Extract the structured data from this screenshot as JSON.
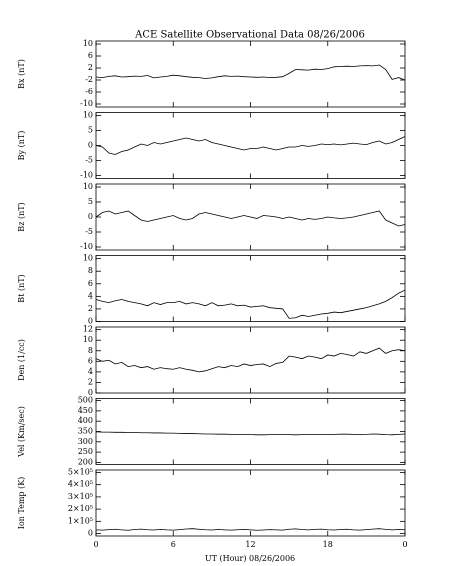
{
  "chart_data": {
    "type": "line",
    "title": "ACE Satellite Observational Data   08/26/2006",
    "xlabel": "UT (Hour)   08/26/2006",
    "xlim": [
      0,
      24
    ],
    "xticks": [
      0,
      6,
      12,
      18,
      {
        "value": 24,
        "label": "0"
      }
    ],
    "x": [
      0,
      0.5,
      1,
      1.5,
      2,
      2.5,
      3,
      3.5,
      4,
      4.5,
      5,
      5.5,
      6,
      6.5,
      7,
      7.5,
      8,
      8.5,
      9,
      9.5,
      10,
      10.5,
      11,
      11.5,
      12,
      12.5,
      13,
      13.5,
      14,
      14.5,
      15,
      15.5,
      16,
      16.5,
      17,
      17.5,
      18,
      18.5,
      19,
      19.5,
      20,
      20.5,
      21,
      21.5,
      22,
      22.5,
      23,
      23.5,
      24
    ],
    "color": "#000000",
    "panels": [
      {
        "ylabel": "Bx (nT)",
        "ylim": [
          -11,
          11
        ],
        "yticks": [
          -10,
          -6,
          -2,
          2,
          6,
          10
        ],
        "values": [
          -1,
          -1.2,
          -0.8,
          -0.6,
          -1,
          -0.9,
          -0.7,
          -0.8,
          -0.5,
          -1.3,
          -1,
          -0.8,
          -0.4,
          -0.6,
          -0.9,
          -1.1,
          -1.2,
          -1.5,
          -1.3,
          -0.9,
          -0.6,
          -0.8,
          -0.7,
          -0.9,
          -1,
          -1.1,
          -1,
          -1.2,
          -1.1,
          -0.9,
          0.2,
          1.5,
          1.4,
          1.3,
          1.6,
          1.5,
          1.8,
          2.4,
          2.5,
          2.6,
          2.5,
          2.7,
          2.8,
          2.7,
          3,
          1.5,
          -1.8,
          -1.2,
          -2
        ]
      },
      {
        "ylabel": "By (nT)",
        "ylim": [
          -11,
          11
        ],
        "yticks": [
          -10,
          -5,
          0,
          5,
          10
        ],
        "values": [
          0,
          -0.5,
          -2.5,
          -3,
          -2,
          -1.5,
          -0.5,
          0.5,
          0,
          1,
          0.5,
          1,
          1.5,
          2,
          2.5,
          2,
          1.5,
          2,
          1,
          0.5,
          0,
          -0.5,
          -1,
          -1.5,
          -1,
          -1,
          -0.5,
          -1,
          -1.5,
          -1,
          -0.5,
          -0.5,
          0,
          -0.3,
          0,
          0.5,
          0.3,
          0.5,
          0.2,
          0.5,
          0.8,
          0.5,
          0.3,
          1,
          1.5,
          0.5,
          1,
          2,
          3
        ]
      },
      {
        "ylabel": "Bz (nT)",
        "ylim": [
          -11,
          11
        ],
        "yticks": [
          -10,
          -5,
          0,
          5,
          10
        ],
        "values": [
          0,
          1.5,
          2,
          1,
          1.5,
          2,
          0.5,
          -1,
          -1.5,
          -1,
          -0.5,
          0,
          0.5,
          -0.5,
          -1,
          -0.5,
          1,
          1.5,
          1,
          0.5,
          0,
          -0.5,
          0,
          0.5,
          0,
          -0.5,
          0.5,
          0.3,
          0,
          -0.5,
          0,
          -0.5,
          -1,
          -0.5,
          -0.8,
          -0.5,
          0,
          -0.3,
          -0.5,
          -0.3,
          0,
          0.5,
          1,
          1.5,
          2,
          -1,
          -2,
          -3,
          -2.5
        ]
      },
      {
        "ylabel": "Bt (nT)",
        "ylim": [
          0,
          10.5
        ],
        "yticks": [
          0,
          2,
          4,
          6,
          8,
          10
        ],
        "values": [
          3.5,
          3.2,
          3,
          3.3,
          3.5,
          3.2,
          3,
          2.8,
          2.5,
          3,
          2.7,
          3,
          3,
          3.2,
          2.8,
          3,
          2.8,
          2.5,
          3,
          2.5,
          2.6,
          2.8,
          2.5,
          2.6,
          2.3,
          2.4,
          2.5,
          2.2,
          2.1,
          2,
          0.5,
          0.6,
          1,
          0.8,
          1,
          1.2,
          1.3,
          1.5,
          1.4,
          1.6,
          1.8,
          2,
          2.2,
          2.5,
          2.8,
          3.2,
          3.8,
          4.5,
          5
        ]
      },
      {
        "ylabel": "Den (1/cc)",
        "ylim": [
          0,
          12.5
        ],
        "yticks": [
          0,
          2,
          4,
          6,
          8,
          10,
          12
        ],
        "values": [
          6.5,
          6,
          6.2,
          5.5,
          5.8,
          5,
          5.2,
          4.8,
          5,
          4.5,
          4.8,
          4.6,
          4.5,
          4.8,
          4.5,
          4.3,
          4,
          4.2,
          4.6,
          5,
          4.8,
          5.2,
          5,
          5.5,
          5.2,
          5.4,
          5.5,
          5,
          5.6,
          5.8,
          7,
          6.8,
          6.5,
          7,
          6.8,
          6.5,
          7.2,
          7,
          7.5,
          7.3,
          7,
          7.8,
          7.5,
          8,
          8.5,
          7.5,
          8,
          8.2,
          8
        ]
      },
      {
        "ylabel": "Vel (Km/sec)",
        "ylim": [
          190,
          510
        ],
        "yticks": [
          200,
          250,
          300,
          350,
          400,
          450,
          500
        ],
        "values": [
          348,
          347,
          347,
          346,
          346,
          345,
          345,
          344,
          344,
          343,
          343,
          342,
          342,
          341,
          340,
          340,
          339,
          338,
          338,
          337,
          337,
          336,
          336,
          335,
          335,
          334,
          334,
          335,
          336,
          336,
          335,
          334,
          335,
          336,
          336,
          335,
          335,
          336,
          337,
          337,
          336,
          335,
          336,
          338,
          337,
          335,
          334,
          336,
          338
        ]
      },
      {
        "ylabel": "Ion Temp (K)",
        "ylim": [
          -20000,
          520000
        ],
        "yticks": [
          0,
          {
            "value": 100000,
            "label": "1×10⁵"
          },
          {
            "value": 200000,
            "label": "2×10⁵"
          },
          {
            "value": 300000,
            "label": "3×10⁵"
          },
          {
            "value": 400000,
            "label": "4×10⁵"
          },
          {
            "value": 500000,
            "label": "5×10⁵"
          }
        ],
        "values": [
          30000,
          28000,
          32000,
          35000,
          30000,
          27000,
          33000,
          36000,
          31000,
          29000,
          34000,
          30000,
          28000,
          32000,
          37000,
          40000,
          35000,
          31000,
          29000,
          33000,
          30000,
          28000,
          31000,
          34000,
          30000,
          27000,
          29000,
          32000,
          30000,
          28000,
          35000,
          38000,
          33000,
          30000,
          34000,
          36000,
          31000,
          29000,
          33000,
          35000,
          30000,
          28000,
          32000,
          36000,
          40000,
          34000,
          30000,
          33000,
          31000
        ]
      }
    ]
  }
}
